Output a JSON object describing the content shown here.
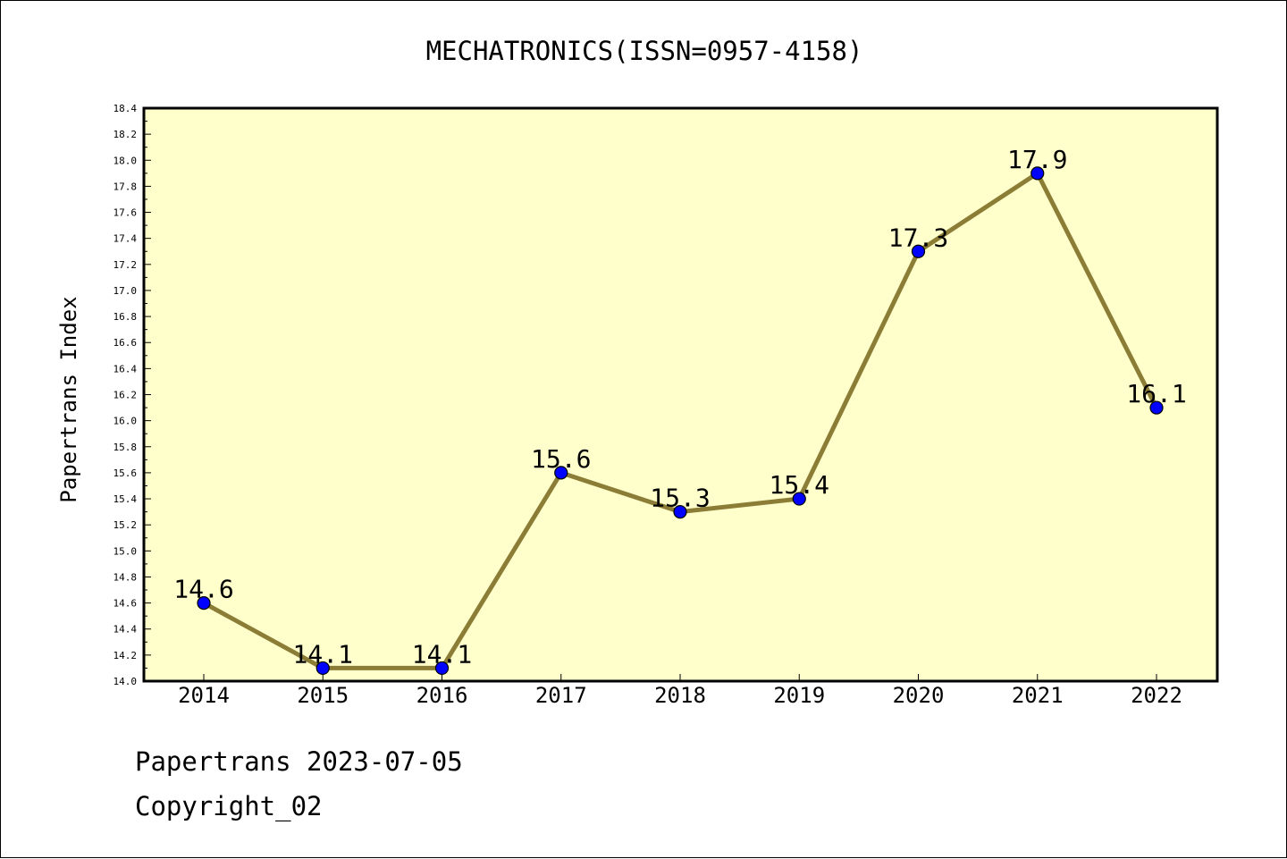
{
  "chart_data": {
    "type": "line",
    "title": "MECHATRONICS(ISSN=0957-4158)",
    "xlabel": "",
    "ylabel": "Papertrans Index",
    "categories": [
      "2014",
      "2015",
      "2016",
      "2017",
      "2018",
      "2019",
      "2020",
      "2021",
      "2022"
    ],
    "series": [
      {
        "values": [
          14.6,
          14.1,
          14.1,
          15.6,
          15.3,
          15.4,
          17.3,
          17.9,
          16.1
        ],
        "data_labels": [
          "14.6",
          "14.1",
          "14.1",
          "15.6",
          "15.3",
          "15.4",
          "17.3",
          "17.9",
          "16.1"
        ]
      }
    ],
    "ylim": [
      14.0,
      18.4
    ],
    "yticks": [
      "14.0",
      "14.2",
      "14.4",
      "14.6",
      "14.8",
      "15.0",
      "15.2",
      "15.4",
      "15.6",
      "15.8",
      "16.0",
      "16.2",
      "16.4",
      "16.6",
      "16.8",
      "17.0",
      "17.2",
      "17.4",
      "17.6",
      "17.8",
      "18.0",
      "18.2",
      "18.4"
    ],
    "grid": false,
    "legend": "none",
    "colors": {
      "plot_background": "#ffffcc",
      "line": "#8b7d35",
      "marker": "#0000ff",
      "axis": "#000000"
    }
  },
  "footer": {
    "date_line": "Papertrans 2023-07-05",
    "copyright": "Copyright_02"
  }
}
